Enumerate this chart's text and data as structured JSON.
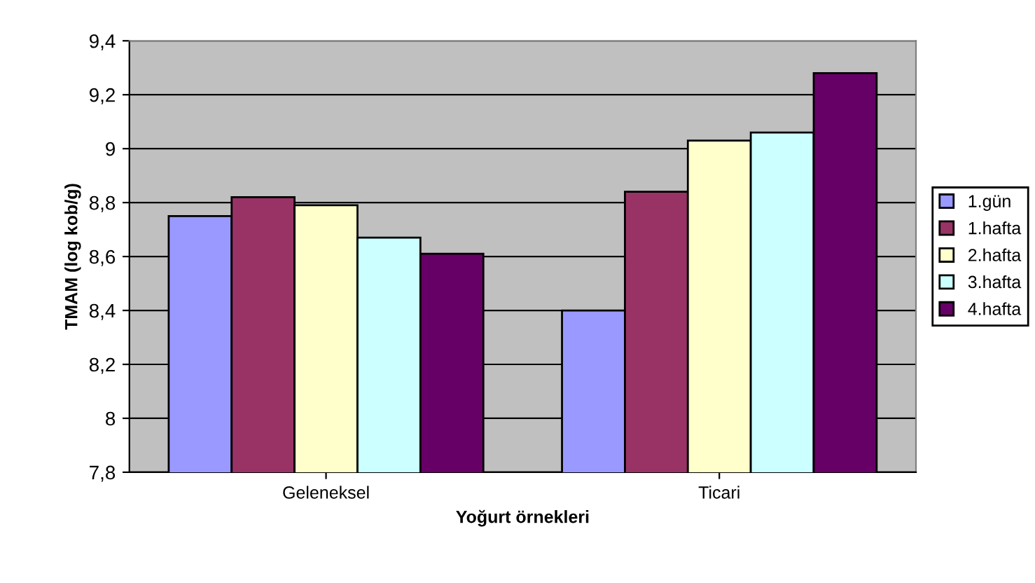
{
  "chart_data": {
    "type": "bar",
    "xlabel": "Yoğurt örnekleri",
    "ylabel": "TMAM (log kob/g)",
    "categories": [
      "Geleneksel",
      "Ticari"
    ],
    "series": [
      {
        "name": "1.gün",
        "color": "#9999ff",
        "values": [
          8.75,
          8.4
        ]
      },
      {
        "name": "1.hafta",
        "color": "#993366",
        "values": [
          8.82,
          8.84
        ]
      },
      {
        "name": "2.hafta",
        "color": "#ffffcc",
        "values": [
          8.79,
          9.03
        ]
      },
      {
        "name": "3.hafta",
        "color": "#ccffff",
        "values": [
          8.67,
          9.06
        ]
      },
      {
        "name": "4.hafta",
        "color": "#660066",
        "values": [
          8.61,
          9.28
        ]
      }
    ],
    "ylim": [
      7.8,
      9.4
    ],
    "yticks": [
      {
        "value": 7.8,
        "label": "7,8"
      },
      {
        "value": 8,
        "label": "8"
      },
      {
        "value": 8.2,
        "label": "8,2"
      },
      {
        "value": 8.4,
        "label": "8,4"
      },
      {
        "value": 8.6,
        "label": "8,6"
      },
      {
        "value": 8.8,
        "label": "8,8"
      },
      {
        "value": 9,
        "label": "9"
      },
      {
        "value": 9.2,
        "label": "9,2"
      },
      {
        "value": 9.4,
        "label": "9,4"
      }
    ],
    "grid": "y",
    "legend": "right"
  }
}
